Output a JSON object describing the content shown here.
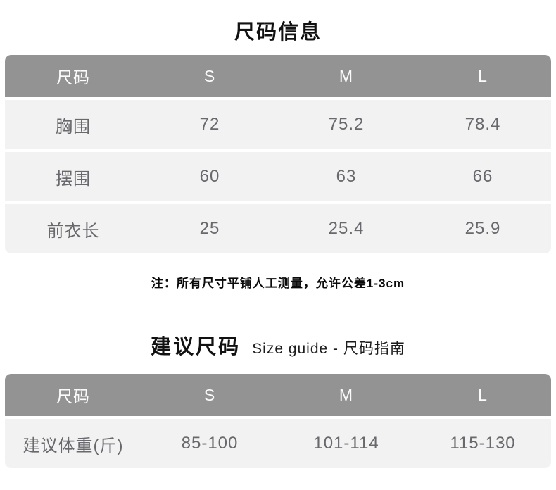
{
  "colors": {
    "header_bg": "#939393",
    "header_text": "#fbfbfb",
    "row_bg": "#f2f2f2",
    "cell_text": "#68686d",
    "title_text": "#111111",
    "page_bg": "#ffffff"
  },
  "size_info": {
    "title": "尺码信息",
    "table": {
      "columns": [
        "尺码",
        "S",
        "M",
        "L"
      ],
      "rows": [
        {
          "label": "胸围",
          "values": [
            "72",
            "75.2",
            "78.4"
          ]
        },
        {
          "label": "摆围",
          "values": [
            "60",
            "63",
            "66"
          ]
        },
        {
          "label": "前衣长",
          "values": [
            "25",
            "25.4",
            "25.9"
          ]
        }
      ]
    },
    "note": "注：所有尺寸平铺人工测量，允许公差1-3cm"
  },
  "suggested_size": {
    "title": "建议尺码",
    "subtitle": "Size guide - 尺码指南",
    "table": {
      "columns": [
        "尺码",
        "S",
        "M",
        "L"
      ],
      "rows": [
        {
          "label": "建议体重(斤)",
          "values": [
            "85-100",
            "101-114",
            "115-130"
          ]
        }
      ]
    }
  }
}
